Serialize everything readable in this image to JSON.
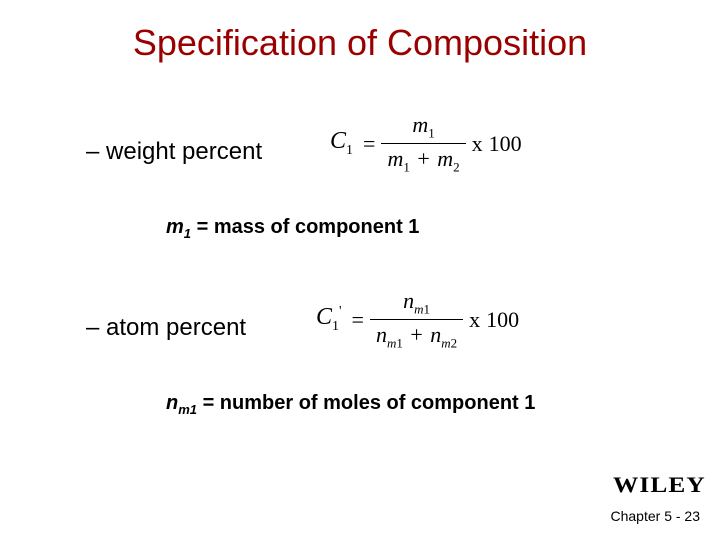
{
  "title": "Specification of Composition",
  "bullets": {
    "weight": "– weight percent",
    "atom": "– atom percent"
  },
  "formulas": {
    "weight": {
      "lhs_var": "C",
      "lhs_sub": "1",
      "num_var": "m",
      "num_sub": "1",
      "den_term1_var": "m",
      "den_term1_sub": "1",
      "den_plus": "+",
      "den_term2_var": "m",
      "den_term2_sub": "2",
      "times": "x",
      "const": "100"
    },
    "atom": {
      "lhs_var": "C",
      "lhs_sub": "1",
      "lhs_sup": "'",
      "num_var": "n",
      "num_sub_var": "m",
      "num_sub_idx": "1",
      "den_term1_var": "n",
      "den_term1_sub_var": "m",
      "den_term1_sub_idx": "1",
      "den_plus": "+",
      "den_term2_var": "n",
      "den_term2_sub_var": "m",
      "den_term2_sub_idx": "2",
      "times": "x",
      "const": "100"
    }
  },
  "defs": {
    "weight_var": "m",
    "weight_sub": "1",
    "weight_rest": " = mass of component 1",
    "atom_var": "n",
    "atom_sub_var": "m",
    "atom_sub_idx": "1",
    "atom_rest": " = number of moles of component 1"
  },
  "logo": "WILEY",
  "footer": "Chapter 5 -  23",
  "colors": {
    "title": "#9a0000",
    "text": "#000000",
    "background": "#ffffff"
  }
}
